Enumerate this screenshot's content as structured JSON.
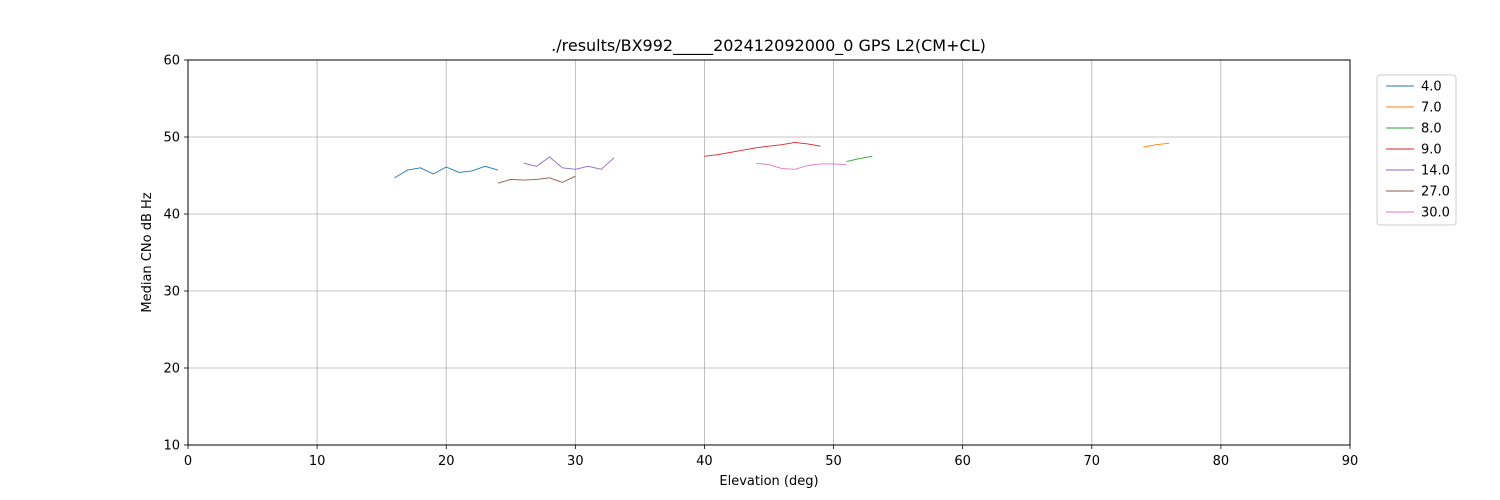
{
  "chart_data": {
    "type": "line",
    "title": "./results/BX992_____202412092000_0 GPS L2(CM+CL)",
    "xlabel": "Elevation (deg)",
    "ylabel": "Median CNo dB Hz",
    "xlim": [
      0,
      90
    ],
    "ylim": [
      10,
      60
    ],
    "xticks": [
      "0",
      "10",
      "20",
      "30",
      "40",
      "50",
      "60",
      "70",
      "80",
      "90"
    ],
    "yticks": [
      "10",
      "20",
      "30",
      "40",
      "50",
      "60"
    ],
    "grid": true,
    "legend_position": "right",
    "series": [
      {
        "name": "4.0",
        "color": "#1f77b4",
        "x": [
          16,
          17,
          18,
          19,
          20,
          21,
          22,
          23,
          24
        ],
        "y": [
          44.7,
          45.7,
          46.0,
          45.2,
          46.1,
          45.4,
          45.6,
          46.2,
          45.7
        ]
      },
      {
        "name": "7.0",
        "color": "#ff7f0e",
        "x": [
          74,
          75,
          76
        ],
        "y": [
          48.7,
          49.0,
          49.2
        ]
      },
      {
        "name": "8.0",
        "color": "#2ca02c",
        "x": [
          51,
          52,
          53
        ],
        "y": [
          46.8,
          47.2,
          47.5
        ]
      },
      {
        "name": "9.0",
        "color": "#d62728",
        "x": [
          40,
          41,
          42,
          43,
          44,
          45,
          46,
          47,
          48,
          49
        ],
        "y": [
          47.5,
          47.7,
          48.0,
          48.3,
          48.6,
          48.8,
          49.0,
          49.3,
          49.1,
          48.8
        ]
      },
      {
        "name": "14.0",
        "color": "#9467bd",
        "x": [
          26,
          27,
          28,
          29,
          30,
          31,
          32,
          33
        ],
        "y": [
          46.6,
          46.2,
          47.4,
          46.0,
          45.8,
          46.2,
          45.8,
          47.3
        ]
      },
      {
        "name": "27.0",
        "color": "#8c564b",
        "x": [
          24,
          25,
          26,
          27,
          28,
          29,
          30
        ],
        "y": [
          44.0,
          44.5,
          44.4,
          44.5,
          44.7,
          44.1,
          44.9
        ]
      },
      {
        "name": "30.0",
        "color": "#e377c2",
        "x": [
          44,
          45,
          46,
          47,
          48,
          49,
          50,
          51
        ],
        "y": [
          46.6,
          46.4,
          45.9,
          45.8,
          46.3,
          46.5,
          46.5,
          46.4
        ]
      }
    ]
  }
}
